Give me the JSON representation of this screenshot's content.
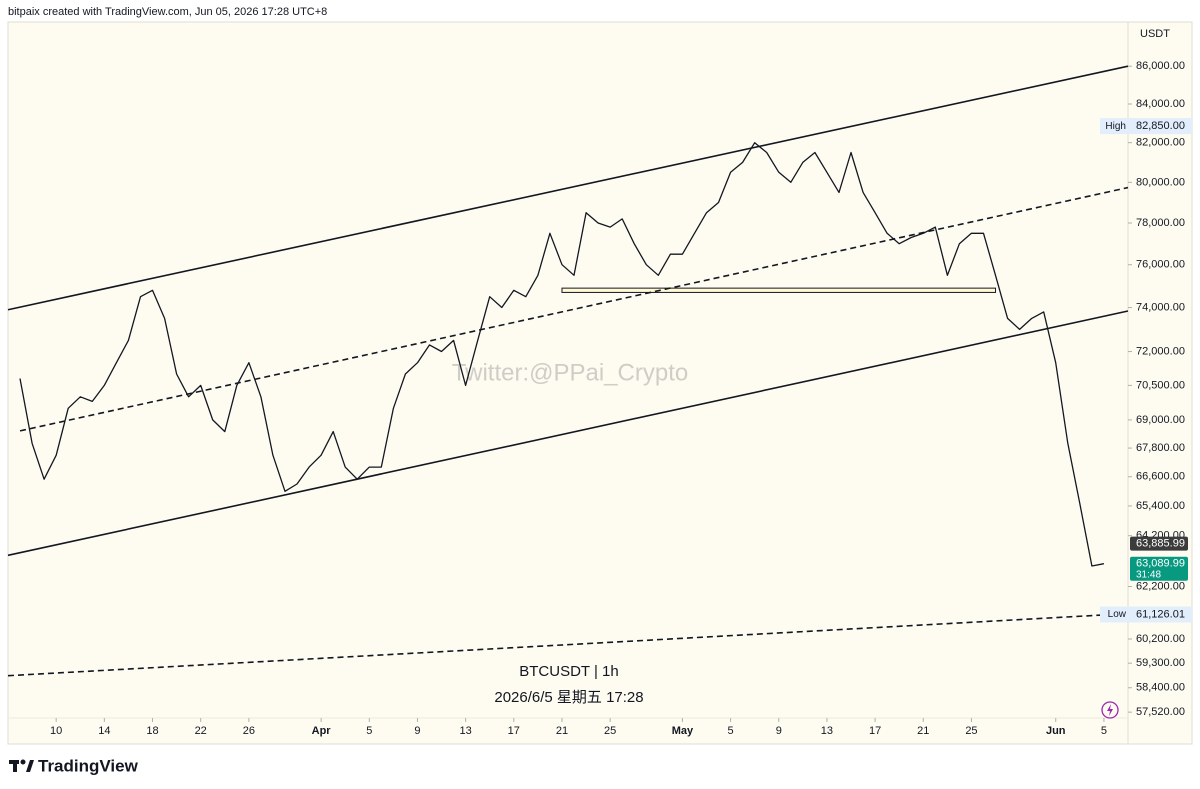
{
  "header": "bitpaix created with TradingView.com, Jun 05, 2026 17:28 UTC+8",
  "footer_logo": "TradingView",
  "chart_data": {
    "type": "line",
    "symbol": "BTCUSDT | 1h",
    "timestamp": "2026/6/5 星期五 17:28",
    "watermark": "Twitter:@PPai_Crypto",
    "currency": "USDT",
    "log_scale": true,
    "grid": false,
    "ylim": [
      56390,
      88400
    ],
    "yticks": [
      {
        "value": 86000,
        "label": "86,000.00"
      },
      {
        "value": 84000,
        "label": "84,000.00"
      },
      {
        "value": 82000,
        "label": "82,000.00"
      },
      {
        "value": 80000,
        "label": "80,000.00"
      },
      {
        "value": 78000,
        "label": "78,000.00"
      },
      {
        "value": 76000,
        "label": "76,000.00"
      },
      {
        "value": 74000,
        "label": "74,000.00"
      },
      {
        "value": 72000,
        "label": "72,000.00"
      },
      {
        "value": 70500,
        "label": "70,500.00"
      },
      {
        "value": 69000,
        "label": "69,000.00"
      },
      {
        "value": 67800,
        "label": "67,800.00"
      },
      {
        "value": 66600,
        "label": "66,600.00"
      },
      {
        "value": 65400,
        "label": "65,400.00"
      },
      {
        "value": 64200,
        "label": "64,200.00"
      },
      {
        "value": 62200,
        "label": "62,200.00"
      },
      {
        "value": 60200,
        "label": "60,200.00"
      },
      {
        "value": 59300,
        "label": "59,300.00"
      },
      {
        "value": 58400,
        "label": "58,400.00"
      },
      {
        "value": 57520,
        "label": "57,520.00"
      }
    ],
    "xlim": [
      "2026-03-06",
      "2026-06-07"
    ],
    "xticks": [
      {
        "value": "2026-03-10",
        "label": "10"
      },
      {
        "value": "2026-03-14",
        "label": "14"
      },
      {
        "value": "2026-03-18",
        "label": "18"
      },
      {
        "value": "2026-03-22",
        "label": "22"
      },
      {
        "value": "2026-03-26",
        "label": "26"
      },
      {
        "value": "2026-04-01",
        "label": "Apr"
      },
      {
        "value": "2026-04-05",
        "label": "5"
      },
      {
        "value": "2026-04-09",
        "label": "9"
      },
      {
        "value": "2026-04-13",
        "label": "13"
      },
      {
        "value": "2026-04-17",
        "label": "17"
      },
      {
        "value": "2026-04-21",
        "label": "21"
      },
      {
        "value": "2026-04-25",
        "label": "25"
      },
      {
        "value": "2026-05-01",
        "label": "May"
      },
      {
        "value": "2026-05-05",
        "label": "5"
      },
      {
        "value": "2026-05-09",
        "label": "9"
      },
      {
        "value": "2026-05-13",
        "label": "13"
      },
      {
        "value": "2026-05-17",
        "label": "17"
      },
      {
        "value": "2026-05-21",
        "label": "21"
      },
      {
        "value": "2026-05-25",
        "label": "25"
      },
      {
        "value": "2026-06-01",
        "label": "Jun"
      },
      {
        "value": "2026-06-05",
        "label": "5"
      }
    ],
    "x": [
      "2026-03-07",
      "2026-03-08",
      "2026-03-09",
      "2026-03-10",
      "2026-03-11",
      "2026-03-12",
      "2026-03-13",
      "2026-03-14",
      "2026-03-15",
      "2026-03-16",
      "2026-03-17",
      "2026-03-18",
      "2026-03-19",
      "2026-03-20",
      "2026-03-21",
      "2026-03-22",
      "2026-03-23",
      "2026-03-24",
      "2026-03-25",
      "2026-03-26",
      "2026-03-27",
      "2026-03-28",
      "2026-03-29",
      "2026-03-30",
      "2026-03-31",
      "2026-04-01",
      "2026-04-02",
      "2026-04-03",
      "2026-04-04",
      "2026-04-05",
      "2026-04-06",
      "2026-04-07",
      "2026-04-08",
      "2026-04-09",
      "2026-04-10",
      "2026-04-11",
      "2026-04-12",
      "2026-04-13",
      "2026-04-14",
      "2026-04-15",
      "2026-04-16",
      "2026-04-17",
      "2026-04-18",
      "2026-04-19",
      "2026-04-20",
      "2026-04-21",
      "2026-04-22",
      "2026-04-23",
      "2026-04-24",
      "2026-04-25",
      "2026-04-26",
      "2026-04-27",
      "2026-04-28",
      "2026-04-29",
      "2026-04-30",
      "2026-05-01",
      "2026-05-02",
      "2026-05-03",
      "2026-05-04",
      "2026-05-05",
      "2026-05-06",
      "2026-05-07",
      "2026-05-08",
      "2026-05-09",
      "2026-05-10",
      "2026-05-11",
      "2026-05-12",
      "2026-05-13",
      "2026-05-14",
      "2026-05-15",
      "2026-05-16",
      "2026-05-17",
      "2026-05-18",
      "2026-05-19",
      "2026-05-20",
      "2026-05-21",
      "2026-05-22",
      "2026-05-23",
      "2026-05-24",
      "2026-05-25",
      "2026-05-26",
      "2026-05-27",
      "2026-05-28",
      "2026-05-29",
      "2026-05-30",
      "2026-05-31",
      "2026-06-01",
      "2026-06-02",
      "2026-06-03",
      "2026-06-04",
      "2026-06-05"
    ],
    "series": [
      {
        "color": "#131722",
        "values": [
          70800,
          68000,
          66500,
          67500,
          69500,
          70000,
          69800,
          70500,
          71500,
          72500,
          74500,
          74800,
          73500,
          71000,
          70000,
          70500,
          69000,
          68500,
          70500,
          71500,
          70000,
          67500,
          66000,
          66300,
          67000,
          67500,
          68500,
          67000,
          66500,
          67000,
          67000,
          69500,
          71000,
          71500,
          72300,
          72000,
          72500,
          70500,
          72500,
          74500,
          74000,
          74800,
          74500,
          75500,
          77500,
          76000,
          75500,
          78500,
          78000,
          77800,
          78200,
          77000,
          76000,
          75500,
          76500,
          76500,
          77500,
          78500,
          79000,
          80500,
          81000,
          82000,
          81500,
          80500,
          80000,
          81000,
          81500,
          80500,
          79500,
          81500,
          79500,
          78500,
          77500,
          77000,
          77300,
          77500,
          77800,
          75500,
          77000,
          77500,
          77500,
          75500,
          73500,
          73000,
          73500,
          73800,
          71500,
          68000,
          65500,
          63000,
          63090
        ]
      }
    ],
    "trend_lines": [
      {
        "style": "solid",
        "points": [
          [
            "2026-03-06",
            73900
          ],
          [
            "2026-06-07",
            86000
          ]
        ]
      },
      {
        "style": "solid",
        "points": [
          [
            "2026-03-06",
            63420
          ],
          [
            "2026-06-07",
            73840
          ]
        ]
      },
      {
        "style": "dashed",
        "points": [
          [
            "2026-03-07",
            68530
          ],
          [
            "2026-06-07",
            79740
          ]
        ]
      },
      {
        "style": "dashed",
        "points": [
          [
            "2026-03-06",
            58840
          ],
          [
            "2026-06-07",
            61160
          ]
        ]
      }
    ],
    "zones": [
      {
        "from": "2026-04-21",
        "to": "2026-05-27",
        "top": 74900,
        "bottom": 74700
      }
    ],
    "markers": [
      {
        "text": "High",
        "value": 82850,
        "value_label": "82,850.00",
        "color": "#e3eefc"
      },
      {
        "text": "Low",
        "value": 61126.01,
        "value_label": "61,126.01",
        "color": "#e3eefc"
      }
    ],
    "price_tags": [
      {
        "value": 63885.99,
        "value_label": "63,885.99",
        "color": "#3c3c3c"
      },
      {
        "value": 63089.99,
        "value_label": "63,089.99",
        "countdown": "31:48",
        "color": "#089981"
      }
    ]
  }
}
